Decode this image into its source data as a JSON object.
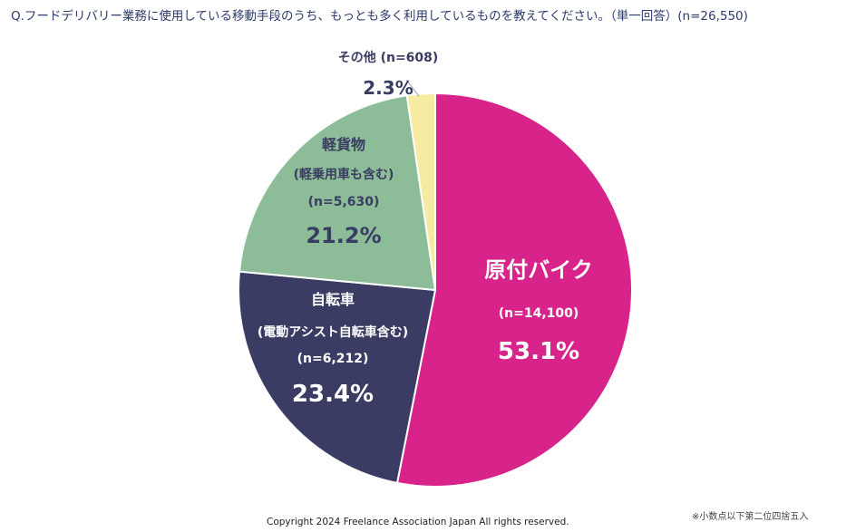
{
  "title": "Q.フードデリバリー業務に使用している移動手段のうち、もっとも多く利用しているものを教えてください。（単一回答）(n=26,550)",
  "copyright": "Copyright 2024 Freelance Association Japan  All rights reserved.",
  "note": "※小数点以下第二位四捨五入",
  "chart_data": {
    "type": "pie",
    "total_n": 26550,
    "slices": [
      {
        "label": "原付バイク",
        "sublabel": "",
        "n_text": "(n=14,100)",
        "n": 14100,
        "value": 53.1,
        "pct_text": "53.1%",
        "color": "#D8238A"
      },
      {
        "label": "自転車",
        "sublabel": "(電動アシスト自転車含む)",
        "n_text": "(n=6,212)",
        "n": 6212,
        "value": 23.4,
        "pct_text": "23.4%",
        "color": "#3A3C63"
      },
      {
        "label": "軽貨物",
        "sublabel": "(軽乗用車も含む)",
        "n_text": "(n=5,630)",
        "n": 5630,
        "value": 21.2,
        "pct_text": "21.2%",
        "color": "#8CBD98"
      },
      {
        "label": "その他",
        "sublabel": "",
        "n_text": "(n=608)",
        "n": 608,
        "value": 2.3,
        "pct_text": "2.3%",
        "color": "#F7EBA2"
      }
    ]
  }
}
